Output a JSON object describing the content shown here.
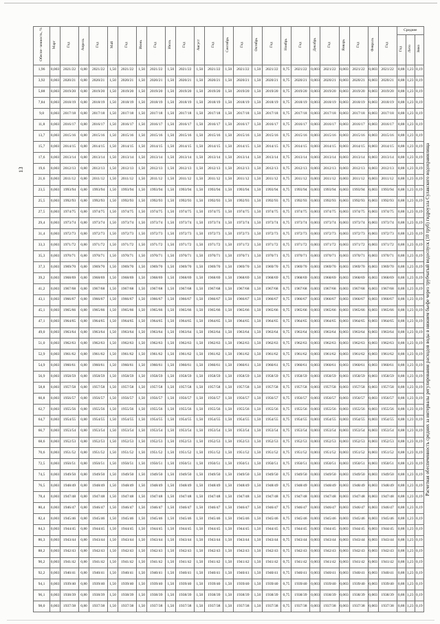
{
  "page": {
    "number": "13",
    "title": "Расчетная обеспеченность средних за интервалы регулирования расходов воды в нижнем бьефе через трубчатый водоспуск (10 труб) гидроузла Сулакского водохранилища"
  },
  "table": {
    "percent_header": "Обеспе- ченность, %",
    "year_header": "Год",
    "avg_group_header": "Среднее",
    "avg_subheaders": [
      "Год",
      "Лето",
      "Зима"
    ],
    "months": [
      "Март",
      "Апрель",
      "Май",
      "Июнь",
      "Июль",
      "Август",
      "Сентябрь",
      "Октябрь",
      "Ноябрь",
      "Декабрь",
      "Январь",
      "Февраль"
    ],
    "month_values_default": [
      "0,003",
      "0,80",
      "1,50",
      "1,50",
      "1,50",
      "1,50",
      "1,50",
      "1,50",
      "0,75",
      "0,003",
      "0,003",
      "0,003"
    ],
    "averages_default": [
      "0,88",
      "1,23",
      "0,19"
    ],
    "rows": [
      {
        "p": "1,96",
        "y": "2021/22"
      },
      {
        "p": "3,92",
        "y": "2020/21"
      },
      {
        "p": "5,88",
        "y": "2019/20"
      },
      {
        "p": "7,84",
        "y": "2018/19"
      },
      {
        "p": "9,8",
        "y": "2017/18"
      },
      {
        "p": "11,8",
        "y": "2016/17"
      },
      {
        "p": "13,7",
        "y": "2015/16"
      },
      {
        "p": "15,7",
        "y": "2014/15"
      },
      {
        "p": "17,6",
        "y": "2013/14"
      },
      {
        "p": "19,6",
        "y": "2012/13"
      },
      {
        "p": "21,6",
        "y": "2011/12"
      },
      {
        "p": "23,5",
        "y": "1993/94"
      },
      {
        "p": "25,5",
        "y": "1992/93"
      },
      {
        "p": "27,5",
        "y": "1974/75"
      },
      {
        "p": "29,4",
        "y": "1973/74"
      },
      {
        "p": "31,4",
        "y": "1972/73"
      },
      {
        "p": "33,3",
        "y": "1971/72"
      },
      {
        "p": "35,3",
        "y": "1970/71"
      },
      {
        "p": "37,3",
        "y": "1969/70"
      },
      {
        "p": "39,2",
        "y": "1968/69"
      },
      {
        "p": "41,2",
        "y": "1967/68"
      },
      {
        "p": "43,1",
        "y": "1966/67"
      },
      {
        "p": "45,1",
        "y": "1965/66"
      },
      {
        "p": "47,1",
        "y": "1964/65"
      },
      {
        "p": "49,0",
        "y": "1963/64"
      },
      {
        "p": "51,0",
        "y": "1962/63"
      },
      {
        "p": "52,9",
        "y": "1961/62"
      },
      {
        "p": "54,9",
        "y": "1960/61"
      },
      {
        "p": "56,9",
        "y": "1958/59"
      },
      {
        "p": "58,8",
        "y": "1957/58"
      },
      {
        "p": "60,8",
        "y": "1956/57"
      },
      {
        "p": "62,7",
        "y": "1955/56"
      },
      {
        "p": "64,7",
        "y": "1954/55"
      },
      {
        "p": "66,7",
        "y": "1953/54"
      },
      {
        "p": "68,6",
        "y": "1952/53"
      },
      {
        "p": "70,6",
        "y": "1951/52"
      },
      {
        "p": "72,5",
        "y": "1950/51"
      },
      {
        "p": "74,5",
        "y": "1949/50"
      },
      {
        "p": "76,5",
        "y": "1948/49"
      },
      {
        "p": "78,4",
        "y": "1947/48"
      },
      {
        "p": "80,4",
        "y": "1946/47"
      },
      {
        "p": "82,4",
        "y": "1945/46"
      },
      {
        "p": "84,3",
        "y": "1944/45"
      },
      {
        "p": "86,3",
        "y": "1943/44"
      },
      {
        "p": "88,2",
        "y": "1942/43"
      },
      {
        "p": "90,2",
        "y": "1941/42"
      },
      {
        "p": "92,2",
        "y": "1940/41"
      },
      {
        "p": "94,1",
        "y": "1939/40"
      },
      {
        "p": "96,1",
        "y": "1938/39"
      },
      {
        "p": "98,0",
        "y": "1937/38"
      }
    ]
  }
}
